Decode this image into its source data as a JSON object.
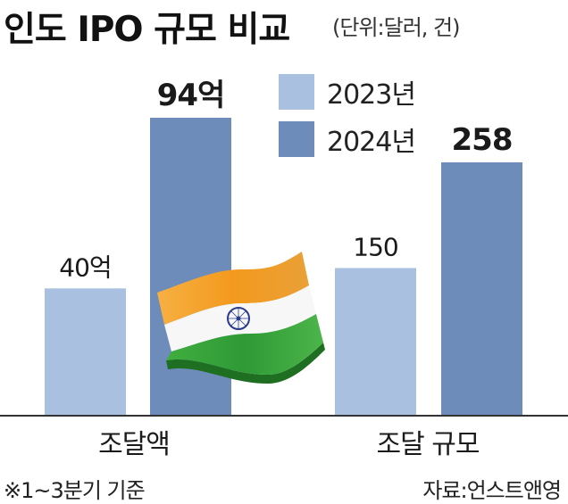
{
  "header": {
    "title": "인도 IPO 규모 비교",
    "unit": "(단위:달러, 건)"
  },
  "chart_data": {
    "type": "bar",
    "title": "인도 IPO 규모 비교",
    "categories": [
      "조달액",
      "조달 규모"
    ],
    "series": [
      {
        "name": "2023년",
        "color": "#a9c0e0",
        "values": [
          40,
          150
        ],
        "labels": [
          "40억",
          "150"
        ]
      },
      {
        "name": "2024년",
        "color": "#6e8cba",
        "values": [
          94,
          258
        ],
        "labels": [
          "94억",
          "258"
        ]
      }
    ],
    "legend_position": "top-right",
    "grid": false
  },
  "footer": {
    "note": "※1~3분기 기준",
    "source": "자료:언스트앤영"
  },
  "decoration": {
    "flag": "india-flag-icon",
    "flag_colors": {
      "saffron": "#f39a1e",
      "white": "#f7f7f7",
      "green": "#2f9a36",
      "chakra": "#2a3a8c"
    }
  }
}
